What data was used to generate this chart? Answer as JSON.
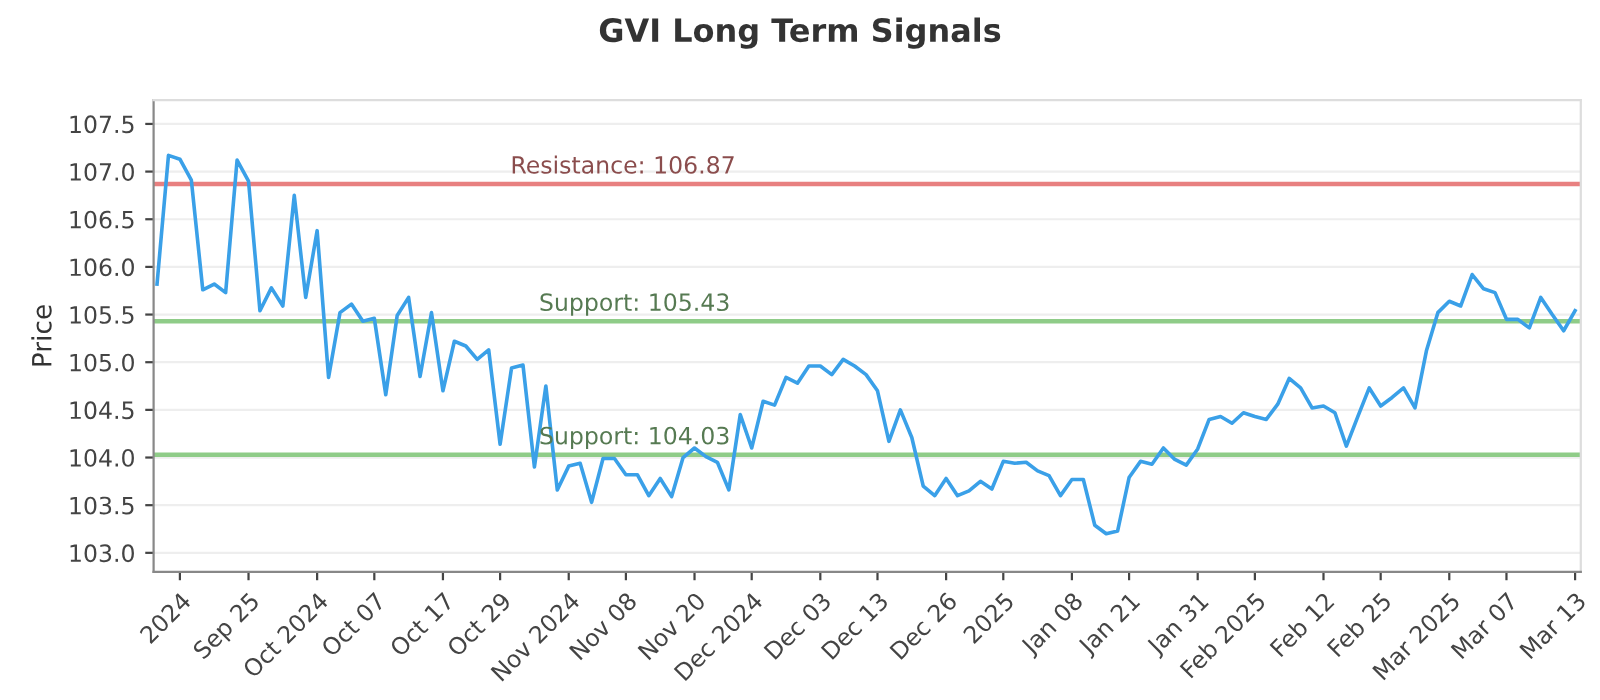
{
  "chart_data": {
    "type": "line",
    "title": "GVI Long Term Signals",
    "ylabel": "Price",
    "categories": [
      null,
      null,
      "2024",
      null,
      null,
      null,
      null,
      null,
      "Sep 25",
      null,
      null,
      null,
      null,
      null,
      "Oct 2024",
      null,
      null,
      null,
      null,
      "Oct 07",
      null,
      null,
      null,
      null,
      null,
      "Oct 17",
      null,
      null,
      null,
      null,
      "Oct 29",
      null,
      null,
      null,
      null,
      null,
      "Nov 2024",
      null,
      null,
      null,
      null,
      "Nov 08",
      null,
      null,
      null,
      null,
      null,
      "Nov 20",
      null,
      null,
      null,
      null,
      "Dec 2024",
      null,
      null,
      null,
      null,
      null,
      "Dec 03",
      null,
      null,
      null,
      null,
      "Dec 13",
      null,
      null,
      null,
      null,
      null,
      "Dec 26",
      null,
      null,
      null,
      null,
      "2025",
      null,
      null,
      null,
      null,
      null,
      "Jan 08",
      null,
      null,
      null,
      null,
      "Jan 21",
      null,
      null,
      null,
      null,
      null,
      "Jan 31",
      null,
      null,
      null,
      null,
      "Feb 2025",
      null,
      null,
      null,
      null,
      null,
      "Feb 12",
      null,
      null,
      null,
      null,
      "Feb 25",
      null,
      null,
      null,
      null,
      null,
      "Mar 2025",
      null,
      null,
      null,
      null,
      "Mar 07",
      null,
      null,
      null,
      null,
      null,
      "Mar 13"
    ],
    "series": [
      {
        "color": "#3aa0e8",
        "values": [
          105.82,
          107.17,
          107.13,
          106.91,
          105.76,
          105.82,
          105.73,
          107.12,
          106.9,
          105.54,
          105.78,
          105.59,
          106.75,
          105.68,
          106.38,
          104.84,
          105.52,
          105.61,
          105.43,
          105.46,
          104.66,
          105.49,
          105.68,
          104.85,
          105.52,
          104.7,
          105.22,
          105.17,
          105.03,
          105.13,
          104.14,
          104.94,
          104.97,
          103.9,
          104.75,
          103.66,
          103.91,
          103.94,
          103.53,
          103.99,
          103.99,
          103.82,
          103.82,
          103.6,
          103.78,
          103.59,
          104.0,
          104.1,
          104.01,
          103.95,
          103.66,
          104.45,
          104.1,
          104.59,
          104.55,
          104.84,
          104.78,
          104.96,
          104.96,
          104.87,
          105.03,
          104.96,
          104.87,
          104.7,
          104.17,
          104.5,
          104.21,
          103.7,
          103.6,
          103.78,
          103.6,
          103.65,
          103.75,
          103.67,
          103.96,
          103.94,
          103.95,
          103.86,
          103.81,
          103.6,
          103.77,
          103.77,
          103.29,
          103.2,
          103.23,
          103.79,
          103.96,
          103.93,
          104.1,
          103.98,
          103.92,
          104.09,
          104.4,
          104.43,
          104.36,
          104.47,
          104.43,
          104.4,
          104.56,
          104.83,
          104.73,
          104.52,
          104.54,
          104.47,
          104.12,
          104.43,
          104.73,
          104.54,
          104.63,
          104.73,
          104.52,
          105.12,
          105.52,
          105.64,
          105.59,
          105.92,
          105.77,
          105.73,
          105.45,
          105.45,
          105.36,
          105.68,
          105.5,
          105.33,
          105.54
        ]
      }
    ],
    "ylim": [
      102.8,
      107.75
    ],
    "yticks": [
      {
        "value": 103,
        "label": "103.0"
      },
      103.5,
      {
        "value": 104,
        "label": "104.0"
      },
      104.5,
      {
        "value": 105,
        "label": "105.0"
      },
      105.5,
      {
        "value": 106,
        "label": "106.0"
      },
      106.5,
      {
        "value": 107,
        "label": "107.0"
      },
      107.5
    ],
    "ref_lines": [
      {
        "axis": "y",
        "value": 106.87,
        "label": "Resistance: 106.87",
        "color": "#e88080"
      },
      {
        "axis": "y",
        "value": 105.43,
        "label": "Support: 105.43",
        "color": "#8fcc88"
      },
      {
        "axis": "y",
        "value": 104.03,
        "label": "Support: 104.03",
        "color": "#8fcc88"
      }
    ],
    "grid": "y",
    "marker": "none",
    "line_style": "solid"
  }
}
